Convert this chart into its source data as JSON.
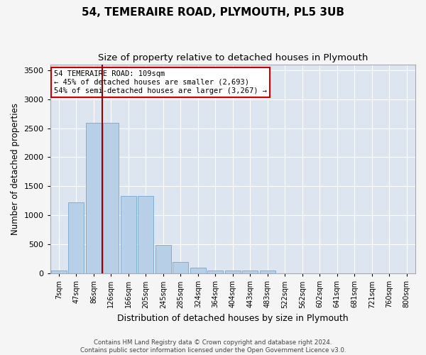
{
  "title1": "54, TEMERAIRE ROAD, PLYMOUTH, PL5 3UB",
  "title2": "Size of property relative to detached houses in Plymouth",
  "xlabel": "Distribution of detached houses by size in Plymouth",
  "ylabel": "Number of detached properties",
  "bar_labels": [
    "7sqm",
    "47sqm",
    "86sqm",
    "126sqm",
    "166sqm",
    "205sqm",
    "245sqm",
    "285sqm",
    "324sqm",
    "364sqm",
    "404sqm",
    "443sqm",
    "483sqm",
    "522sqm",
    "562sqm",
    "602sqm",
    "641sqm",
    "681sqm",
    "721sqm",
    "760sqm",
    "800sqm"
  ],
  "bar_values": [
    55,
    1220,
    2590,
    2590,
    1330,
    1330,
    490,
    195,
    100,
    55,
    55,
    55,
    55,
    0,
    0,
    0,
    0,
    0,
    0,
    0,
    0
  ],
  "bar_color": "#b8cfe8",
  "bar_edge_color": "#7fafd4",
  "vline_x": 2.5,
  "vline_color": "#990000",
  "annotation_title": "54 TEMERAIRE ROAD: 109sqm",
  "annotation_line1": "← 45% of detached houses are smaller (2,693)",
  "annotation_line2": "54% of semi-detached houses are larger (3,267) →",
  "annotation_box_facecolor": "#ffffff",
  "annotation_box_edgecolor": "#cc0000",
  "ylim": [
    0,
    3600
  ],
  "yticks": [
    0,
    500,
    1000,
    1500,
    2000,
    2500,
    3000,
    3500
  ],
  "background_color": "#dde5f0",
  "grid_color": "#ffffff",
  "fig_facecolor": "#f5f5f5",
  "footer1": "Contains HM Land Registry data © Crown copyright and database right 2024.",
  "footer2": "Contains public sector information licensed under the Open Government Licence v3.0."
}
